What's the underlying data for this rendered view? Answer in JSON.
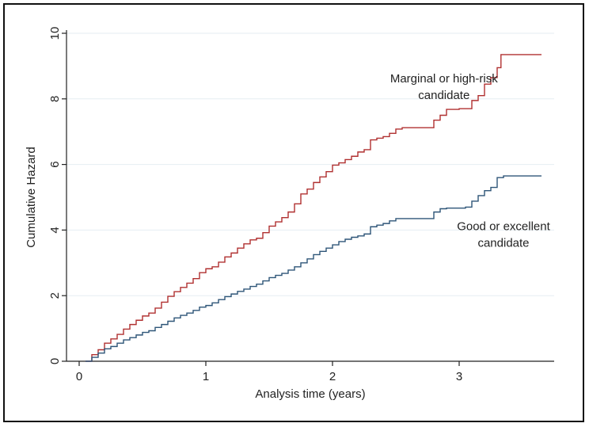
{
  "chart_data": {
    "type": "line",
    "title": "",
    "xlabel": "Analysis time (years)",
    "ylabel": "Cumulative Hazard",
    "xlim": [
      -0.1,
      3.75
    ],
    "ylim": [
      0,
      10
    ],
    "x_ticks": [
      "0",
      "1",
      "2",
      "3"
    ],
    "y_ticks": [
      "0",
      "2",
      "4",
      "6",
      "8",
      "10"
    ],
    "grid": true,
    "legend": "none",
    "series": [
      {
        "color": "#b03030",
        "step": true,
        "points": [
          [
            0.05,
            0.0
          ],
          [
            0.1,
            0.2
          ],
          [
            0.15,
            0.35
          ],
          [
            0.2,
            0.55
          ],
          [
            0.25,
            0.68
          ],
          [
            0.3,
            0.82
          ],
          [
            0.35,
            0.98
          ],
          [
            0.4,
            1.12
          ],
          [
            0.45,
            1.25
          ],
          [
            0.5,
            1.38
          ],
          [
            0.55,
            1.47
          ],
          [
            0.6,
            1.62
          ],
          [
            0.65,
            1.8
          ],
          [
            0.7,
            1.98
          ],
          [
            0.75,
            2.12
          ],
          [
            0.8,
            2.25
          ],
          [
            0.85,
            2.38
          ],
          [
            0.9,
            2.52
          ],
          [
            0.95,
            2.7
          ],
          [
            1.0,
            2.82
          ],
          [
            1.05,
            2.88
          ],
          [
            1.1,
            3.02
          ],
          [
            1.15,
            3.18
          ],
          [
            1.2,
            3.3
          ],
          [
            1.25,
            3.45
          ],
          [
            1.3,
            3.58
          ],
          [
            1.35,
            3.7
          ],
          [
            1.4,
            3.75
          ],
          [
            1.45,
            3.92
          ],
          [
            1.5,
            4.12
          ],
          [
            1.55,
            4.25
          ],
          [
            1.6,
            4.38
          ],
          [
            1.65,
            4.55
          ],
          [
            1.7,
            4.8
          ],
          [
            1.75,
            5.1
          ],
          [
            1.8,
            5.25
          ],
          [
            1.85,
            5.45
          ],
          [
            1.9,
            5.62
          ],
          [
            1.95,
            5.78
          ],
          [
            2.0,
            5.98
          ],
          [
            2.05,
            6.05
          ],
          [
            2.1,
            6.15
          ],
          [
            2.15,
            6.25
          ],
          [
            2.2,
            6.38
          ],
          [
            2.25,
            6.45
          ],
          [
            2.3,
            6.75
          ],
          [
            2.35,
            6.8
          ],
          [
            2.4,
            6.85
          ],
          [
            2.45,
            6.95
          ],
          [
            2.5,
            7.08
          ],
          [
            2.55,
            7.12
          ],
          [
            2.6,
            7.12
          ],
          [
            2.7,
            7.12
          ],
          [
            2.75,
            7.12
          ],
          [
            2.8,
            7.35
          ],
          [
            2.85,
            7.5
          ],
          [
            2.9,
            7.68
          ],
          [
            3.0,
            7.7
          ],
          [
            3.05,
            7.7
          ],
          [
            3.1,
            7.95
          ],
          [
            3.15,
            8.1
          ],
          [
            3.2,
            8.45
          ],
          [
            3.25,
            8.65
          ],
          [
            3.3,
            8.95
          ],
          [
            3.33,
            9.35
          ],
          [
            3.4,
            9.35
          ],
          [
            3.5,
            9.35
          ],
          [
            3.65,
            9.35
          ]
        ]
      },
      {
        "color": "#2e5578",
        "step": true,
        "points": [
          [
            0.05,
            0.0
          ],
          [
            0.1,
            0.12
          ],
          [
            0.15,
            0.25
          ],
          [
            0.2,
            0.38
          ],
          [
            0.25,
            0.45
          ],
          [
            0.3,
            0.55
          ],
          [
            0.35,
            0.65
          ],
          [
            0.4,
            0.72
          ],
          [
            0.45,
            0.8
          ],
          [
            0.5,
            0.88
          ],
          [
            0.55,
            0.93
          ],
          [
            0.6,
            1.03
          ],
          [
            0.65,
            1.12
          ],
          [
            0.7,
            1.22
          ],
          [
            0.75,
            1.32
          ],
          [
            0.8,
            1.4
          ],
          [
            0.85,
            1.47
          ],
          [
            0.9,
            1.55
          ],
          [
            0.95,
            1.65
          ],
          [
            1.0,
            1.7
          ],
          [
            1.05,
            1.78
          ],
          [
            1.1,
            1.88
          ],
          [
            1.15,
            1.97
          ],
          [
            1.2,
            2.05
          ],
          [
            1.25,
            2.13
          ],
          [
            1.3,
            2.2
          ],
          [
            1.35,
            2.28
          ],
          [
            1.4,
            2.35
          ],
          [
            1.45,
            2.45
          ],
          [
            1.5,
            2.55
          ],
          [
            1.55,
            2.62
          ],
          [
            1.6,
            2.68
          ],
          [
            1.65,
            2.78
          ],
          [
            1.7,
            2.88
          ],
          [
            1.75,
            3.0
          ],
          [
            1.8,
            3.12
          ],
          [
            1.85,
            3.25
          ],
          [
            1.9,
            3.35
          ],
          [
            1.95,
            3.45
          ],
          [
            2.0,
            3.55
          ],
          [
            2.05,
            3.65
          ],
          [
            2.1,
            3.72
          ],
          [
            2.15,
            3.78
          ],
          [
            2.2,
            3.82
          ],
          [
            2.25,
            3.88
          ],
          [
            2.3,
            4.1
          ],
          [
            2.35,
            4.15
          ],
          [
            2.4,
            4.2
          ],
          [
            2.45,
            4.28
          ],
          [
            2.5,
            4.35
          ],
          [
            2.55,
            4.35
          ],
          [
            2.7,
            4.35
          ],
          [
            2.75,
            4.35
          ],
          [
            2.8,
            4.55
          ],
          [
            2.85,
            4.65
          ],
          [
            2.9,
            4.67
          ],
          [
            3.0,
            4.67
          ],
          [
            3.05,
            4.7
          ],
          [
            3.1,
            4.88
          ],
          [
            3.15,
            5.05
          ],
          [
            3.2,
            5.2
          ],
          [
            3.25,
            5.3
          ],
          [
            3.3,
            5.6
          ],
          [
            3.35,
            5.65
          ],
          [
            3.4,
            5.65
          ],
          [
            3.5,
            5.65
          ],
          [
            3.65,
            5.65
          ]
        ]
      }
    ],
    "annotations": [
      {
        "lines": [
          "Marginal or high-risk",
          "candidate"
        ],
        "x": 2.88,
        "y": 8.5
      },
      {
        "lines": [
          "Good or excellent",
          "candidate"
        ],
        "x": 3.35,
        "y": 4.0
      }
    ]
  }
}
